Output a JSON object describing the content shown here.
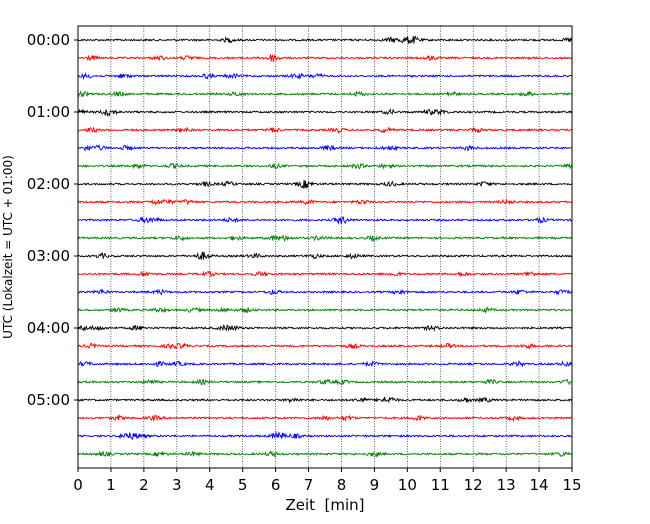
{
  "chart_data": {
    "type": "line",
    "title": "",
    "xlabel": "Zeit  [min]",
    "ylabel": "UTC (Lokalzeit = UTC + 01:00)",
    "xlim": [
      0,
      15
    ],
    "x_ticks": [
      "0",
      "1",
      "2",
      "3",
      "4",
      "5",
      "6",
      "7",
      "8",
      "9",
      "10",
      "11",
      "12",
      "13",
      "14",
      "15"
    ],
    "y_tick_labels": [
      "00:00",
      "01:00",
      "02:00",
      "03:00",
      "04:00",
      "05:00"
    ],
    "grid": "vertical dotted at each minute",
    "interval_minutes": 15,
    "trace_count": 24,
    "trace_start_labels": [
      "00:00",
      "00:15",
      "00:30",
      "00:45",
      "01:00",
      "01:15",
      "01:30",
      "01:45",
      "02:00",
      "02:15",
      "02:30",
      "02:45",
      "03:00",
      "03:15",
      "03:30",
      "03:45",
      "04:00",
      "04:15",
      "04:30",
      "04:45",
      "05:00",
      "05:15",
      "05:30",
      "05:45"
    ],
    "series_colors": [
      "#000000",
      "#ff0000",
      "#0000ff",
      "#008000"
    ],
    "description_of_signal": "low-amplitude seismic noise on every trace"
  }
}
